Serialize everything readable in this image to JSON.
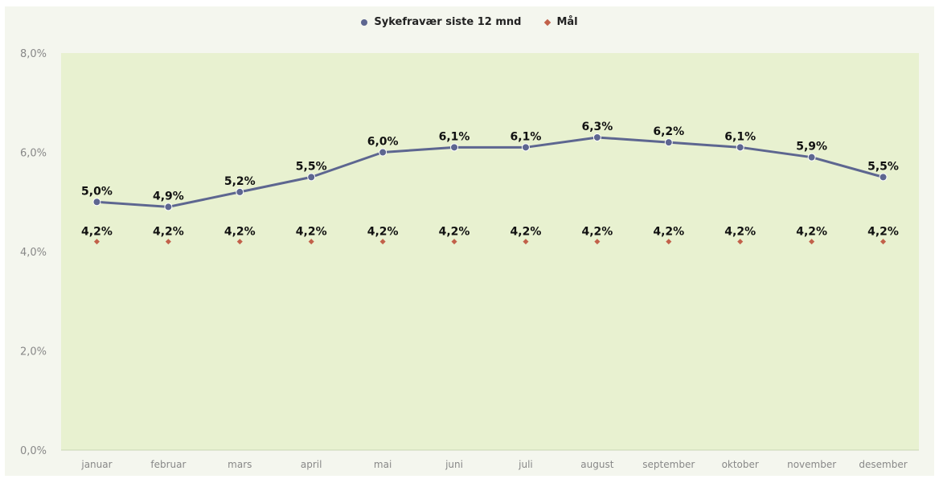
{
  "chart_data": {
    "type": "line",
    "title": "",
    "xlabel": "",
    "ylabel": "",
    "categories": [
      "januar",
      "februar",
      "mars",
      "april",
      "mai",
      "juni",
      "juli",
      "august",
      "september",
      "oktober",
      "november",
      "desember"
    ],
    "ylim": [
      0,
      8
    ],
    "yticks": [
      0,
      2,
      4,
      6,
      8
    ],
    "ytick_labels": [
      "0,0%",
      "2,0%",
      "4,0%",
      "6,0%",
      "8,0%"
    ],
    "grid": false,
    "legend_position": "top-center",
    "series": [
      {
        "name": "Sykefravær siste 12 mnd",
        "values": [
          5.0,
          4.9,
          5.2,
          5.5,
          6.0,
          6.1,
          6.1,
          6.3,
          6.2,
          6.1,
          5.9,
          5.5
        ],
        "labels": [
          "5,0%",
          "4,9%",
          "5,2%",
          "5,5%",
          "6,0%",
          "6,1%",
          "6,1%",
          "6,3%",
          "6,2%",
          "6,1%",
          "5,9%",
          "5,5%"
        ],
        "color": "#5d6690"
      },
      {
        "name": "Mål",
        "values": [
          4.2,
          4.2,
          4.2,
          4.2,
          4.2,
          4.2,
          4.2,
          4.2,
          4.2,
          4.2,
          4.2,
          4.2
        ],
        "labels": [
          "4,2%",
          "4,2%",
          "4,2%",
          "4,2%",
          "4,2%",
          "4,2%",
          "4,2%",
          "4,2%",
          "4,2%",
          "4,2%",
          "4,2%",
          "4,2%"
        ],
        "color": "#c2614a"
      }
    ]
  },
  "colors": {
    "plot_background": "#e8f1d0",
    "axis_text": "#888888",
    "label_text": "#111111"
  }
}
